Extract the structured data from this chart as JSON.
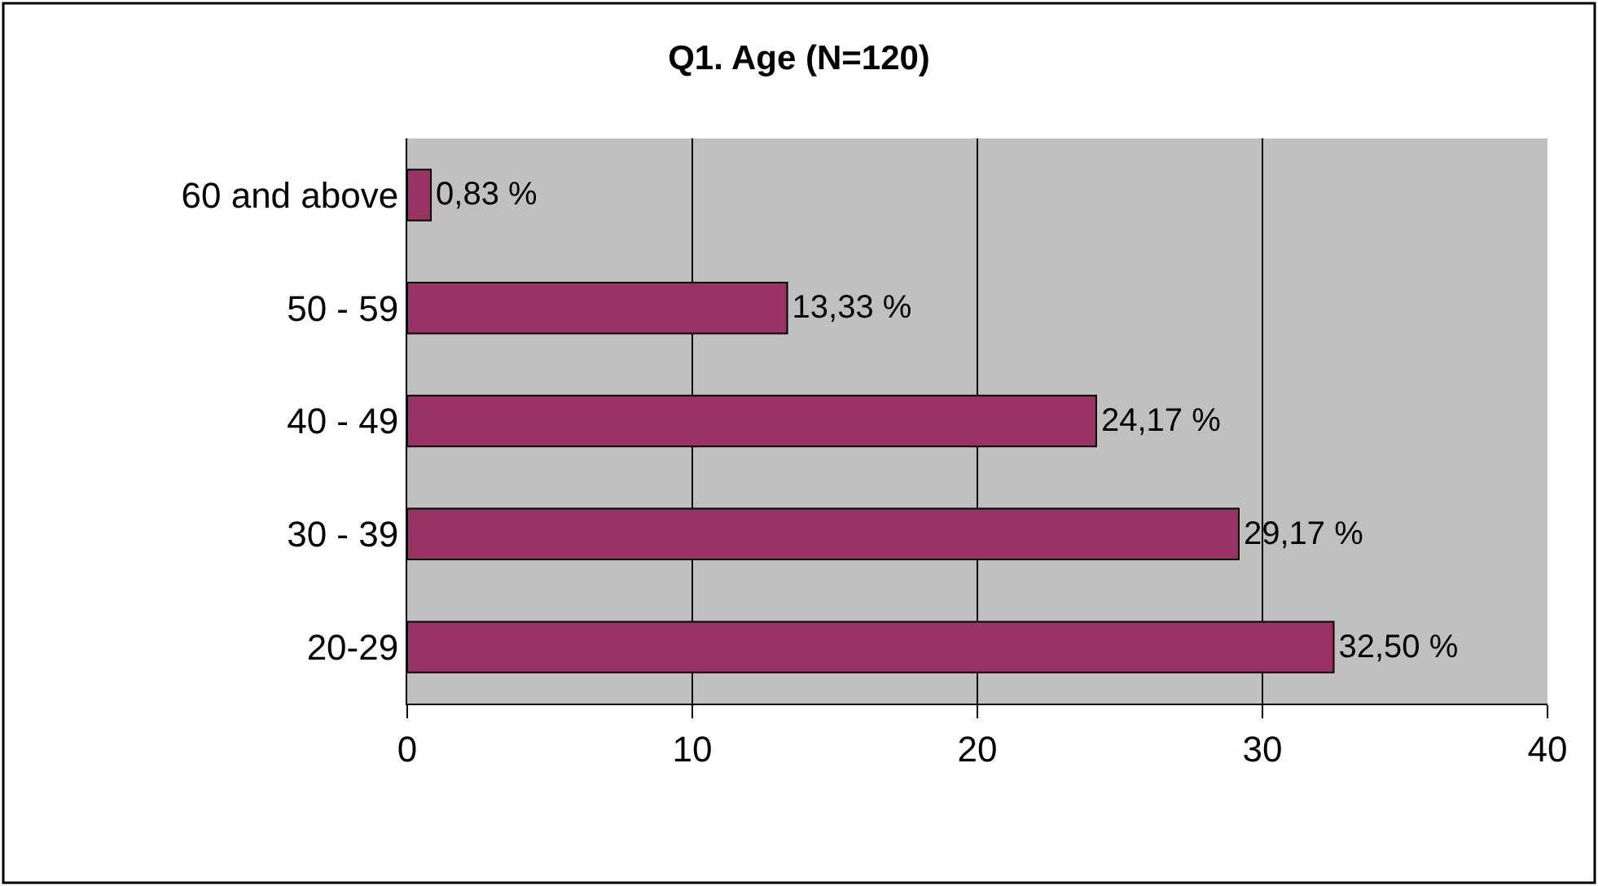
{
  "chart_data": {
    "type": "bar",
    "orientation": "horizontal",
    "title": "Q1. Age (N=120)",
    "categories": [
      "60 and above",
      "50 - 59",
      "40 - 49",
      "30 - 39",
      "20-29"
    ],
    "values": [
      0.83,
      13.33,
      24.17,
      29.17,
      32.5
    ],
    "value_labels": [
      "0,83 %",
      "13,33 %",
      "24,17 %",
      "29,17 %",
      "32,50 %"
    ],
    "color": "#993366",
    "xlim": [
      0,
      40
    ],
    "xticks": [
      0,
      10,
      20,
      30,
      40
    ],
    "grid": "x",
    "legend": false
  }
}
